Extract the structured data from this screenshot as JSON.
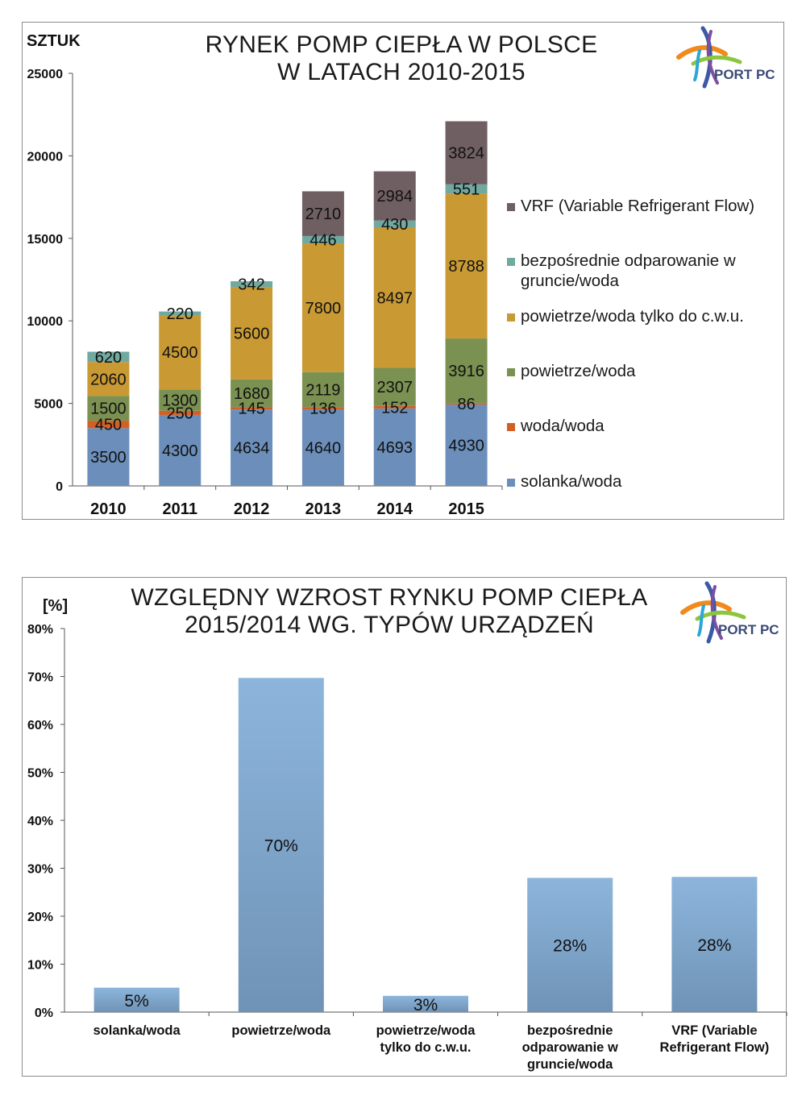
{
  "charts": [
    {
      "unit_label": "SZTUK",
      "title_line1": "RYNEK POMP CIEPŁA W POLSCE",
      "title_line2": "W LATACH 2010-2015",
      "logo_text": "PORT PC"
    },
    {
      "unit_label": "[%]",
      "title_line1": "WZGLĘDNY WZROST RYNKU POMP CIEPŁA",
      "title_line2": "2015/2014 WG. TYPÓW URZĄDZEŃ",
      "logo_text": "PORT PC"
    }
  ],
  "legend": [
    {
      "label": "VRF (Variable Refrigerant Flow)",
      "color": "#6f5f63"
    },
    {
      "label": "bezpośrednie odparowanie w gruncie/woda",
      "color": "#6fa9a0"
    },
    {
      "label": "powietrze/woda tylko do c.w.u.",
      "color": "#c99a33"
    },
    {
      "label": "powietrze/woda",
      "color": "#7b9152"
    },
    {
      "label": "woda/woda",
      "color": "#d35f25"
    },
    {
      "label": "solanka/woda",
      "color": "#6b8fba"
    }
  ],
  "chart_data": [
    {
      "type": "bar",
      "stacked": true,
      "title": "RYNEK POMP CIEPŁA W POLSCE W LATACH 2010-2015",
      "ylabel": "SZTUK",
      "categories": [
        "2010",
        "2011",
        "2012",
        "2013",
        "2014",
        "2015"
      ],
      "ylim": [
        0,
        25000
      ],
      "yticks": [
        0,
        5000,
        10000,
        15000,
        20000,
        25000
      ],
      "grid": false,
      "legend_position": "right",
      "series": [
        {
          "name": "solanka/woda",
          "color": "#6b8fba",
          "values": [
            3500,
            4300,
            4634,
            4640,
            4693,
            4930
          ]
        },
        {
          "name": "woda/woda",
          "color": "#d35f25",
          "values": [
            450,
            250,
            145,
            136,
            152,
            86
          ]
        },
        {
          "name": "powietrze/woda",
          "color": "#7b9152",
          "values": [
            1500,
            1300,
            1680,
            2119,
            2307,
            3916
          ]
        },
        {
          "name": "powietrze/woda tylko do c.w.u.",
          "color": "#c99a33",
          "values": [
            2060,
            4500,
            5600,
            7800,
            8497,
            8788
          ]
        },
        {
          "name": "bezpośrednie odparowanie w gruncie/woda",
          "color": "#6fa9a0",
          "values": [
            620,
            220,
            342,
            446,
            430,
            551
          ]
        },
        {
          "name": "VRF (Variable Refrigerant Flow)",
          "color": "#6f5f63",
          "values": [
            0,
            0,
            0,
            2710,
            2984,
            3824
          ]
        }
      ]
    },
    {
      "type": "bar",
      "title": "WZGLĘDNY WZROST RYNKU POMP CIEPŁA 2015/2014 WG. TYPÓW URZĄDZEŃ",
      "ylabel": "[%]",
      "categories": [
        [
          "solanka/woda"
        ],
        [
          "powietrze/woda"
        ],
        [
          "powietrze/woda",
          "tylko do c.w.u."
        ],
        [
          "bezpośrednie",
          "odparowanie w",
          "gruncie/woda"
        ],
        [
          "VRF (Variable",
          "Refrigerant Flow)"
        ]
      ],
      "values": [
        5,
        70,
        3,
        28,
        28
      ],
      "value_labels": [
        "5%",
        "70%",
        "3%",
        "28%",
        "28%"
      ],
      "actual_values": [
        5.1,
        69.7,
        3.4,
        28.0,
        28.2
      ],
      "ylim": [
        0,
        80
      ],
      "yticks": [
        "0%",
        "10%",
        "20%",
        "30%",
        "40%",
        "50%",
        "60%",
        "70%",
        "80%"
      ],
      "grid": false,
      "bar_color": "#7fa6cd"
    }
  ]
}
